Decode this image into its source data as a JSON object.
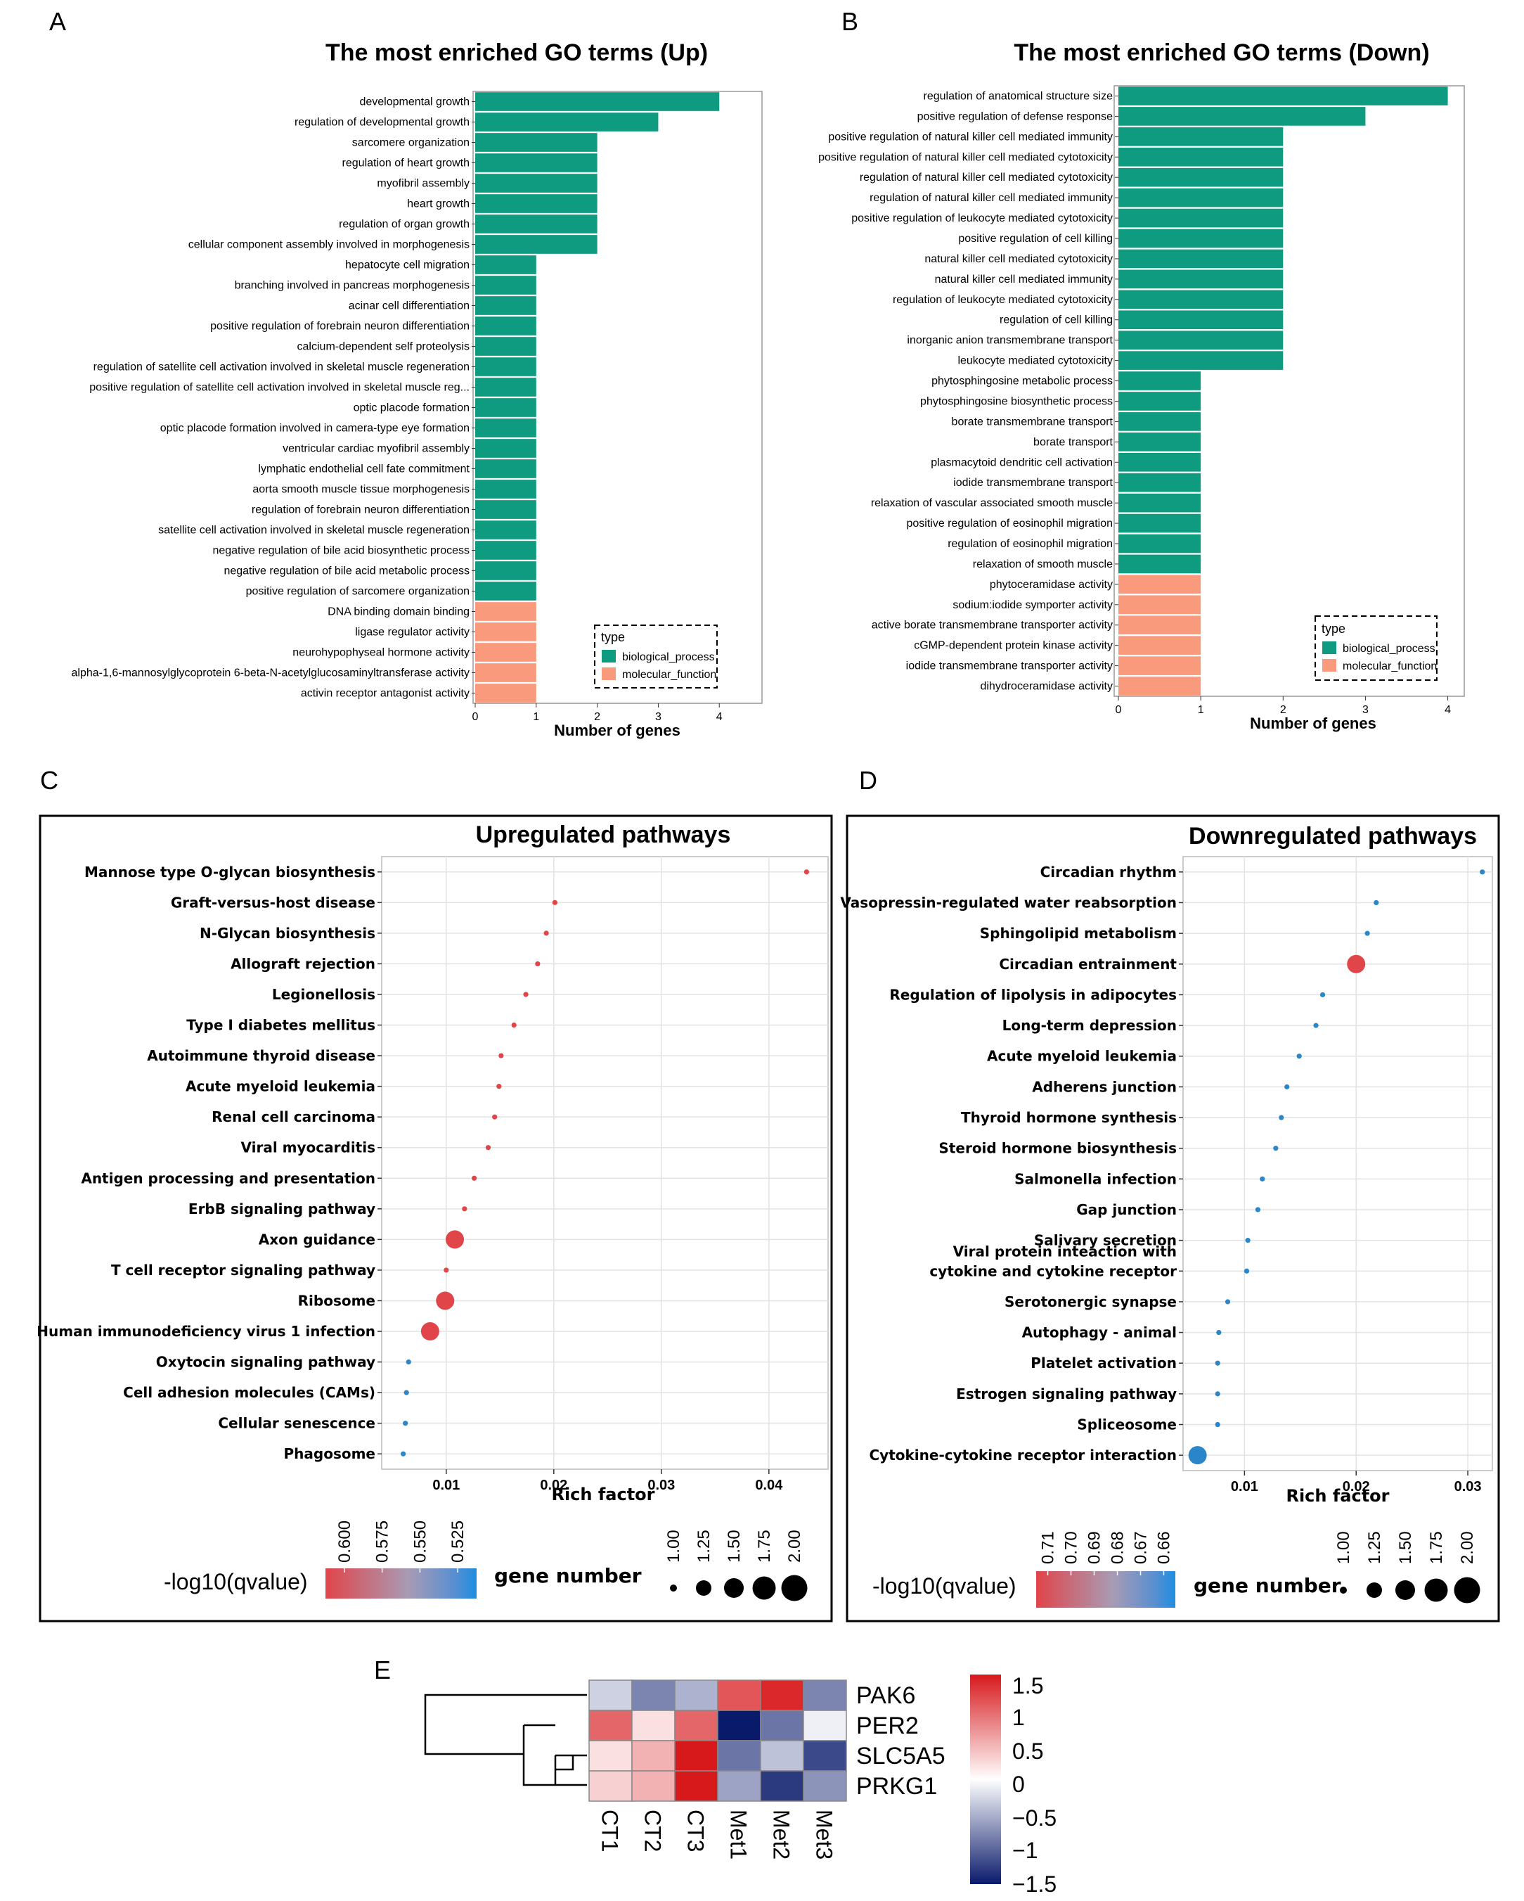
{
  "panel_labels": {
    "a": "A",
    "b": "B",
    "c": "C",
    "d": "D",
    "e": "E"
  },
  "colors": {
    "bio": "#0f9b80",
    "mol": "#f99a7d",
    "dot_red": "#e0454a",
    "dot_blue": "#2a86c8"
  },
  "chart_data": [
    {
      "id": "A",
      "type": "bar",
      "orientation": "horizontal",
      "title": "The most enriched GO terms (Up)",
      "xlabel": "Number of genes",
      "ylabel": "",
      "xlim": [
        0,
        4.7
      ],
      "xticks": [
        0,
        1,
        2,
        3,
        4
      ],
      "legend": {
        "title": "type",
        "position": "bottom-right",
        "items": [
          "biological_process",
          "molecular_function"
        ]
      },
      "categories": [
        "developmental growth",
        "regulation of developmental growth",
        "sarcomere organization",
        "regulation of heart growth",
        "myofibril assembly",
        "heart growth",
        "regulation of organ growth",
        "cellular component assembly involved in morphogenesis",
        "hepatocyte cell migration",
        "branching involved in pancreas morphogenesis",
        "acinar cell differentiation",
        "positive regulation of forebrain neuron differentiation",
        "calcium-dependent self proteolysis",
        "regulation of satellite cell activation involved in skeletal muscle regeneration",
        "positive regulation of satellite cell activation involved in skeletal muscle reg...",
        "optic placode formation",
        "optic placode formation involved in camera-type eye formation",
        "ventricular cardiac myofibril assembly",
        "lymphatic endothelial cell fate commitment",
        "aorta smooth muscle tissue morphogenesis",
        "regulation of forebrain neuron differentiation",
        "satellite cell activation involved in skeletal muscle regeneration",
        "negative regulation of bile acid biosynthetic process",
        "negative regulation of bile acid metabolic process",
        "positive regulation of sarcomere organization",
        "DNA binding domain binding",
        "ligase regulator activity",
        "neurohypophyseal hormone activity",
        "alpha-1,6-mannosylglycoprotein 6-beta-N-acetylglucosaminyltransferase activity",
        "activin receptor antagonist activity"
      ],
      "values": [
        4,
        3,
        2,
        2,
        2,
        2,
        2,
        2,
        1,
        1,
        1,
        1,
        1,
        1,
        1,
        1,
        1,
        1,
        1,
        1,
        1,
        1,
        1,
        1,
        1,
        1,
        1,
        1,
        1,
        1
      ],
      "types": [
        "biological_process",
        "biological_process",
        "biological_process",
        "biological_process",
        "biological_process",
        "biological_process",
        "biological_process",
        "biological_process",
        "biological_process",
        "biological_process",
        "biological_process",
        "biological_process",
        "biological_process",
        "biological_process",
        "biological_process",
        "biological_process",
        "biological_process",
        "biological_process",
        "biological_process",
        "biological_process",
        "biological_process",
        "biological_process",
        "biological_process",
        "biological_process",
        "biological_process",
        "molecular_function",
        "molecular_function",
        "molecular_function",
        "molecular_function",
        "molecular_function"
      ]
    },
    {
      "id": "B",
      "type": "bar",
      "orientation": "horizontal",
      "title": "The most enriched GO terms (Down)",
      "xlabel": "Number of genes",
      "ylabel": "",
      "xlim": [
        0,
        4.2
      ],
      "xticks": [
        0,
        1,
        2,
        3,
        4
      ],
      "legend": {
        "title": "type",
        "position": "bottom-right",
        "items": [
          "biological_process",
          "molecular_function"
        ]
      },
      "categories": [
        "regulation of anatomical structure size",
        "positive regulation of defense response",
        "positive regulation of natural killer cell mediated immunity",
        "positive regulation of natural killer cell mediated cytotoxicity",
        "regulation of natural killer cell mediated cytotoxicity",
        "regulation of natural killer cell mediated immunity",
        "positive regulation of leukocyte mediated cytotoxicity",
        "positive regulation of cell killing",
        "natural killer cell mediated cytotoxicity",
        "natural killer cell mediated immunity",
        "regulation of leukocyte mediated cytotoxicity",
        "regulation of cell killing",
        "inorganic anion transmembrane transport",
        "leukocyte mediated cytotoxicity",
        "phytosphingosine metabolic process",
        "phytosphingosine biosynthetic process",
        "borate transmembrane transport",
        "borate transport",
        "plasmacytoid dendritic cell activation",
        "iodide transmembrane transport",
        "relaxation of vascular associated smooth muscle",
        "positive regulation of eosinophil migration",
        "regulation of eosinophil migration",
        "relaxation of smooth muscle",
        "phytoceramidase activity",
        "sodium:iodide symporter activity",
        "active borate transmembrane transporter activity",
        "cGMP-dependent protein kinase activity",
        "iodide transmembrane transporter activity",
        "dihydroceramidase activity"
      ],
      "values": [
        4,
        3,
        2,
        2,
        2,
        2,
        2,
        2,
        2,
        2,
        2,
        2,
        2,
        2,
        1,
        1,
        1,
        1,
        1,
        1,
        1,
        1,
        1,
        1,
        1,
        1,
        1,
        1,
        1,
        1
      ],
      "types": [
        "biological_process",
        "biological_process",
        "biological_process",
        "biological_process",
        "biological_process",
        "biological_process",
        "biological_process",
        "biological_process",
        "biological_process",
        "biological_process",
        "biological_process",
        "biological_process",
        "biological_process",
        "biological_process",
        "biological_process",
        "biological_process",
        "biological_process",
        "biological_process",
        "biological_process",
        "biological_process",
        "biological_process",
        "biological_process",
        "biological_process",
        "biological_process",
        "molecular_function",
        "molecular_function",
        "molecular_function",
        "molecular_function",
        "molecular_function",
        "molecular_function"
      ]
    },
    {
      "id": "C",
      "type": "scatter",
      "title": "Upregulated pathways",
      "xlabel": "Rich factor",
      "ylabel": "",
      "xlim": [
        0.004,
        0.0455
      ],
      "xticks": [
        "0.01",
        "0.02",
        "0.03",
        "0.04"
      ],
      "xtick_values": [
        0.01,
        0.02,
        0.03,
        0.04
      ],
      "categories": [
        "Mannose type O-glycan biosynthesis",
        "Graft-versus-host disease",
        "N-Glycan biosynthesis",
        "Allograft rejection",
        "Legionellosis",
        "Type I diabetes mellitus",
        "Autoimmune thyroid disease",
        "Acute myeloid leukemia",
        "Renal cell carcinoma",
        "Viral myocarditis",
        "Antigen processing and presentation",
        "ErbB signaling pathway",
        "Axon guidance",
        "T cell receptor signaling pathway",
        "Ribosome",
        "Human immunodeficiency virus 1 infection",
        "Oxytocin signaling pathway",
        "Cell adhesion molecules (CAMs)",
        "Cellular senescence",
        "Phagosome"
      ],
      "x": [
        0.0435,
        0.0201,
        0.0193,
        0.0185,
        0.0174,
        0.0163,
        0.0151,
        0.0149,
        0.0145,
        0.0139,
        0.0126,
        0.0117,
        0.0108,
        0.01,
        0.0099,
        0.0085,
        0.0065,
        0.0063,
        0.0062,
        0.006
      ],
      "gene_number": [
        1,
        1,
        1,
        1,
        1,
        1,
        1,
        1,
        1,
        1,
        1,
        1,
        2,
        1,
        2,
        2,
        1,
        1,
        1,
        1
      ],
      "qvalue_color": [
        "red",
        "red",
        "red",
        "red",
        "red",
        "red",
        "red",
        "red",
        "red",
        "red",
        "red",
        "red",
        "red",
        "red",
        "red",
        "red",
        "blue",
        "blue",
        "blue",
        "blue"
      ],
      "color_legend": {
        "title": "-log10(qvalue)",
        "ticks": [
          "0.600",
          "0.575",
          "0.550",
          "0.525"
        ]
      },
      "size_legend": {
        "title": "gene number",
        "ticks": [
          "1.00",
          "1.25",
          "1.50",
          "1.75",
          "2.00"
        ]
      }
    },
    {
      "id": "D",
      "type": "scatter",
      "title": "Downregulated pathways",
      "xlabel": "Rich factor",
      "ylabel": "",
      "xlim": [
        0.0045,
        0.0322
      ],
      "xticks": [
        "0.01",
        "0.02",
        "0.03"
      ],
      "xtick_values": [
        0.01,
        0.02,
        0.03
      ],
      "categories": [
        "Circadian rhythm",
        "Vasopressin-regulated water reabsorption",
        "Sphingolipid metabolism",
        "Circadian entrainment",
        "Regulation of lipolysis in adipocytes",
        "Long-term depression",
        "Acute myeloid leukemia",
        "Adherens junction",
        "Thyroid hormone synthesis",
        "Steroid hormone biosynthesis",
        "Salmonella infection",
        "Gap junction",
        "Salivary secretion",
        "Viral protein inteaction with\ncytokine and cytokine receptor",
        "Serotonergic synapse",
        "Autophagy - animal",
        "Platelet activation",
        "Estrogen signaling pathway",
        "Spliceosome",
        "Cytokine-cytokine receptor interaction"
      ],
      "x": [
        0.0313,
        0.0218,
        0.021,
        0.02,
        0.017,
        0.0164,
        0.0149,
        0.0138,
        0.0133,
        0.0128,
        0.0116,
        0.0112,
        0.0103,
        0.0102,
        0.0085,
        0.0077,
        0.0076,
        0.0076,
        0.0076,
        0.0058
      ],
      "gene_number": [
        1,
        1,
        1,
        2,
        1,
        1,
        1,
        1,
        1,
        1,
        1,
        1,
        1,
        1,
        1,
        1,
        1,
        1,
        1,
        2
      ],
      "qvalue_color": [
        "blue",
        "blue",
        "blue",
        "red",
        "blue",
        "blue",
        "blue",
        "blue",
        "blue",
        "blue",
        "blue",
        "blue",
        "blue",
        "blue",
        "blue",
        "blue",
        "blue",
        "blue",
        "blue",
        "blue"
      ],
      "color_legend": {
        "title": "-log10(qvalue)",
        "ticks": [
          "0.71",
          "0.70",
          "0.69",
          "0.68",
          "0.67",
          "0.66"
        ]
      },
      "size_legend": {
        "title": "gene number",
        "ticks": [
          "1.00",
          "1.25",
          "1.50",
          "1.75",
          "2.00"
        ]
      }
    },
    {
      "id": "E",
      "type": "heatmap",
      "title": "",
      "rows": [
        "PAK6",
        "PER2",
        "SLC5A5",
        "PRKG1"
      ],
      "columns": [
        "CT1",
        "CT2",
        "CT3",
        "Met1",
        "Met2",
        "Met3"
      ],
      "values": [
        [
          -0.3,
          -0.8,
          -0.5,
          1.1,
          1.4,
          -0.8
        ],
        [
          1.0,
          0.2,
          1.0,
          -1.5,
          -0.9,
          -0.1
        ],
        [
          0.2,
          0.5,
          1.5,
          -0.9,
          -0.4,
          -1.2
        ],
        [
          0.3,
          0.5,
          1.5,
          -0.6,
          -1.3,
          -0.7
        ]
      ],
      "color_range": [
        -1.5,
        1.5
      ],
      "color_scale_ticks": [
        "1.5",
        "1",
        "0.5",
        "0",
        "−0.5",
        "−1",
        "−1.5"
      ],
      "dendrogram": "rows"
    }
  ]
}
